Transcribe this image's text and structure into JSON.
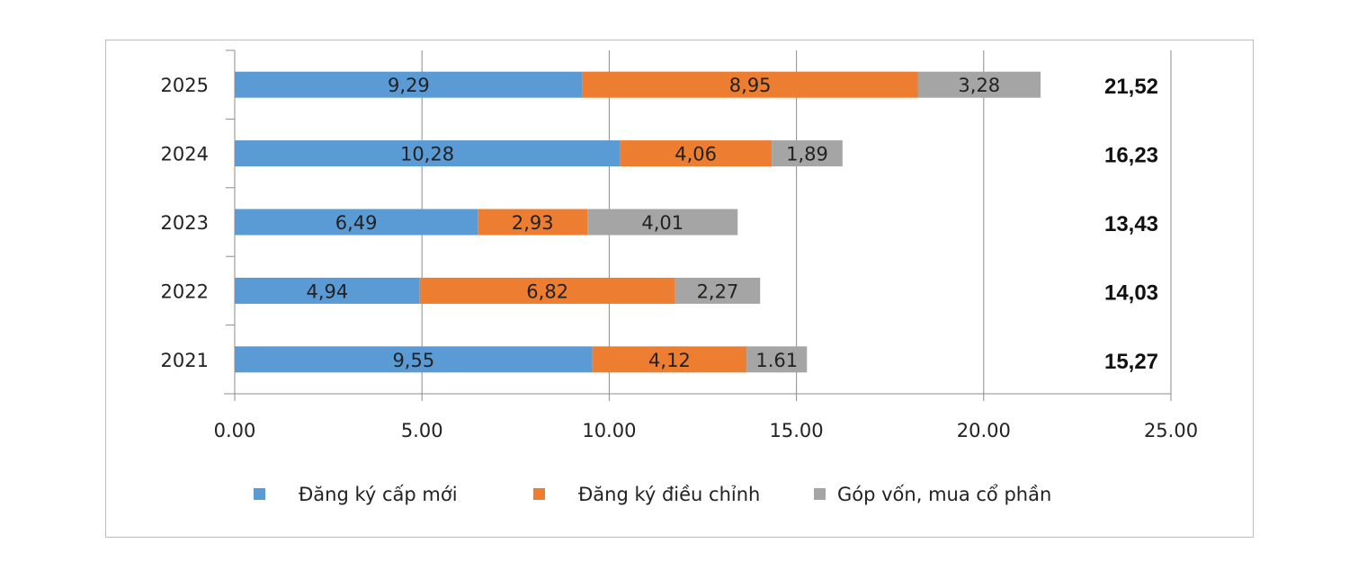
{
  "chart_data": {
    "type": "bar",
    "orientation": "horizontal",
    "stacked": true,
    "categories": [
      "2025",
      "2024",
      "2023",
      "2022",
      "2021"
    ],
    "series": [
      {
        "name": "Đăng ký cấp mới",
        "color": "#5b9bd5",
        "values": [
          9.29,
          10.28,
          6.49,
          4.94,
          9.55
        ],
        "labels": [
          "9,29",
          "10,28",
          "6,49",
          "4,94",
          "9,55"
        ]
      },
      {
        "name": "Đăng ký điều chỉnh",
        "color": "#ed7d31",
        "values": [
          8.95,
          4.06,
          2.93,
          6.82,
          4.12
        ],
        "labels": [
          "8,95",
          "4,06",
          "2,93",
          "6,82",
          "4,12"
        ]
      },
      {
        "name": "Góp vốn, mua cổ phần",
        "color": "#a5a5a5",
        "values": [
          3.28,
          1.89,
          4.01,
          2.27,
          1.61
        ],
        "labels": [
          "3,28",
          "1,89",
          "4,01",
          "2,27",
          "1.61"
        ]
      }
    ],
    "totals": [
      "21,52",
      "16,23",
      "13,43",
      "14,03",
      "15,27"
    ],
    "xlim": [
      0,
      25
    ],
    "xticks": [
      "0.00",
      "5.00",
      "10.00",
      "15.00",
      "20.00",
      "25.00"
    ],
    "grid": true,
    "legend": "bottom"
  }
}
